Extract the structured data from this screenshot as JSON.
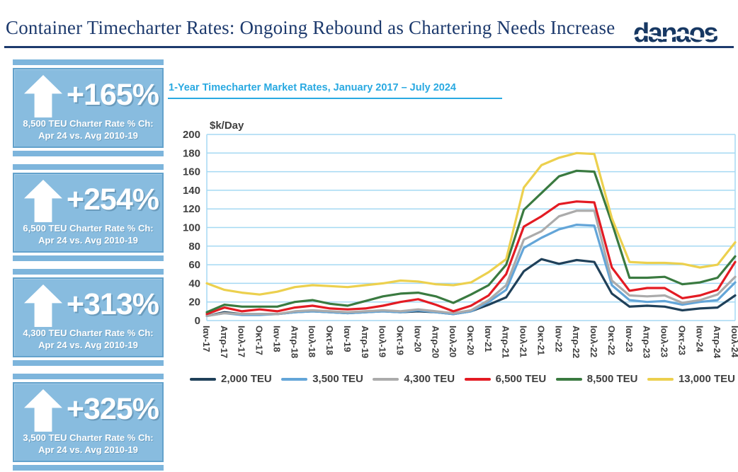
{
  "header": {
    "title": "Container Timecharter Rates: Ongoing Rebound as Chartering Needs Increase",
    "logo_text": "danaos"
  },
  "stat_cards": [
    {
      "percentage": "+165%",
      "line1": "8,500 TEU Charter Rate % Ch:",
      "line2": "Apr 24 vs. Avg 2010-19"
    },
    {
      "percentage": "+254%",
      "line1": "6,500 TEU Charter Rate % Ch:",
      "line2": "Apr 24 vs. Avg 2010-19"
    },
    {
      "percentage": "+313%",
      "line1": "4,300 TEU Charter Rate % Ch:",
      "line2": "Apr 24 vs. Avg 2010-19"
    },
    {
      "percentage": "+325%",
      "line1": "3,500 TEU Charter Rate % Ch:",
      "line2": "Apr 24 vs. Avg 2010-19"
    }
  ],
  "chart": {
    "title": "1-Year Timecharter Market Rates, January 2017 – July 2024",
    "units_label": "$k/Day"
  },
  "colors": {
    "header_navy": "#1D3A6D",
    "card_blue": "#88BCDF",
    "chart_title_blue": "#29A9E1",
    "gridline_blue": "#A5D9F3",
    "axis_text": "#3F3F3F"
  },
  "chart_data": {
    "type": "line",
    "title": "1-Year Timecharter Market Rates, January 2017 – July 2024",
    "xlabel": "",
    "ylabel": "$k/Day",
    "ylim": [
      0,
      200
    ],
    "y_ticks": [
      0,
      20,
      40,
      60,
      80,
      100,
      120,
      140,
      160,
      180,
      200
    ],
    "grid": true,
    "legend_position": "bottom",
    "x_tick_rotation": 90,
    "categories": [
      "Ιαν-17",
      "Απρ-17",
      "Ιουλ-17",
      "Οκτ-17",
      "Ιαν-18",
      "Απρ-18",
      "Ιουλ-18",
      "Οκτ-18",
      "Ιαν-19",
      "Απρ-19",
      "Ιουλ-19",
      "Οκτ-19",
      "Ιαν-20",
      "Απρ-20",
      "Ιουλ-20",
      "Οκτ-20",
      "Ιαν-21",
      "Απρ-21",
      "Ιουλ-21",
      "Οκτ-21",
      "Ιαν-22",
      "Απρ-22",
      "Ιουλ-22",
      "Οκτ-22",
      "Ιαν-23",
      "Απρ-23",
      "Ιουλ-23",
      "Οκτ-23",
      "Ιαν-24",
      "Απρ-24",
      "Ιουλ-24"
    ],
    "series": [
      {
        "name": "2,000 TEU",
        "color": "#1F4059",
        "values": [
          5,
          9,
          7,
          7,
          7,
          9,
          10,
          9,
          8,
          9,
          10,
          9,
          10,
          9,
          7,
          10,
          17,
          25,
          53,
          66,
          61,
          65,
          63,
          29,
          15,
          16,
          15,
          11,
          13,
          14,
          27
        ]
      },
      {
        "name": "3,500 TEU",
        "color": "#63A5D8",
        "values": [
          5,
          8,
          6,
          6,
          7,
          9,
          10,
          9,
          8,
          9,
          10,
          9,
          11,
          9,
          7,
          10,
          20,
          33,
          78,
          89,
          98,
          103,
          102,
          38,
          22,
          20,
          21,
          17,
          20,
          22,
          41
        ]
      },
      {
        "name": "4,300 TEU",
        "color": "#ABABAB",
        "values": [
          5,
          8,
          7,
          7,
          7,
          10,
          11,
          10,
          9,
          10,
          11,
          10,
          12,
          10,
          8,
          11,
          22,
          38,
          87,
          96,
          112,
          118,
          118,
          43,
          27,
          26,
          27,
          19,
          22,
          28,
          47
        ]
      },
      {
        "name": "6,500 TEU",
        "color": "#E31B23",
        "values": [
          7,
          14,
          10,
          12,
          10,
          14,
          16,
          13,
          12,
          13,
          16,
          20,
          23,
          17,
          10,
          16,
          27,
          50,
          101,
          112,
          125,
          128,
          127,
          57,
          32,
          35,
          35,
          24,
          27,
          33,
          63
        ]
      },
      {
        "name": "8,500 TEU",
        "color": "#3A7A40",
        "values": [
          9,
          17,
          15,
          15,
          15,
          20,
          22,
          18,
          16,
          21,
          26,
          29,
          30,
          26,
          19,
          28,
          38,
          60,
          119,
          137,
          155,
          161,
          160,
          105,
          46,
          46,
          47,
          39,
          41,
          46,
          69
        ]
      },
      {
        "name": "13,000 TEU",
        "color": "#ECD04E",
        "values": [
          40,
          33,
          30,
          28,
          31,
          36,
          38,
          37,
          36,
          38,
          40,
          43,
          42,
          39,
          38,
          41,
          52,
          66,
          143,
          167,
          175,
          180,
          179,
          110,
          63,
          62,
          62,
          61,
          57,
          60,
          84
        ]
      }
    ]
  }
}
